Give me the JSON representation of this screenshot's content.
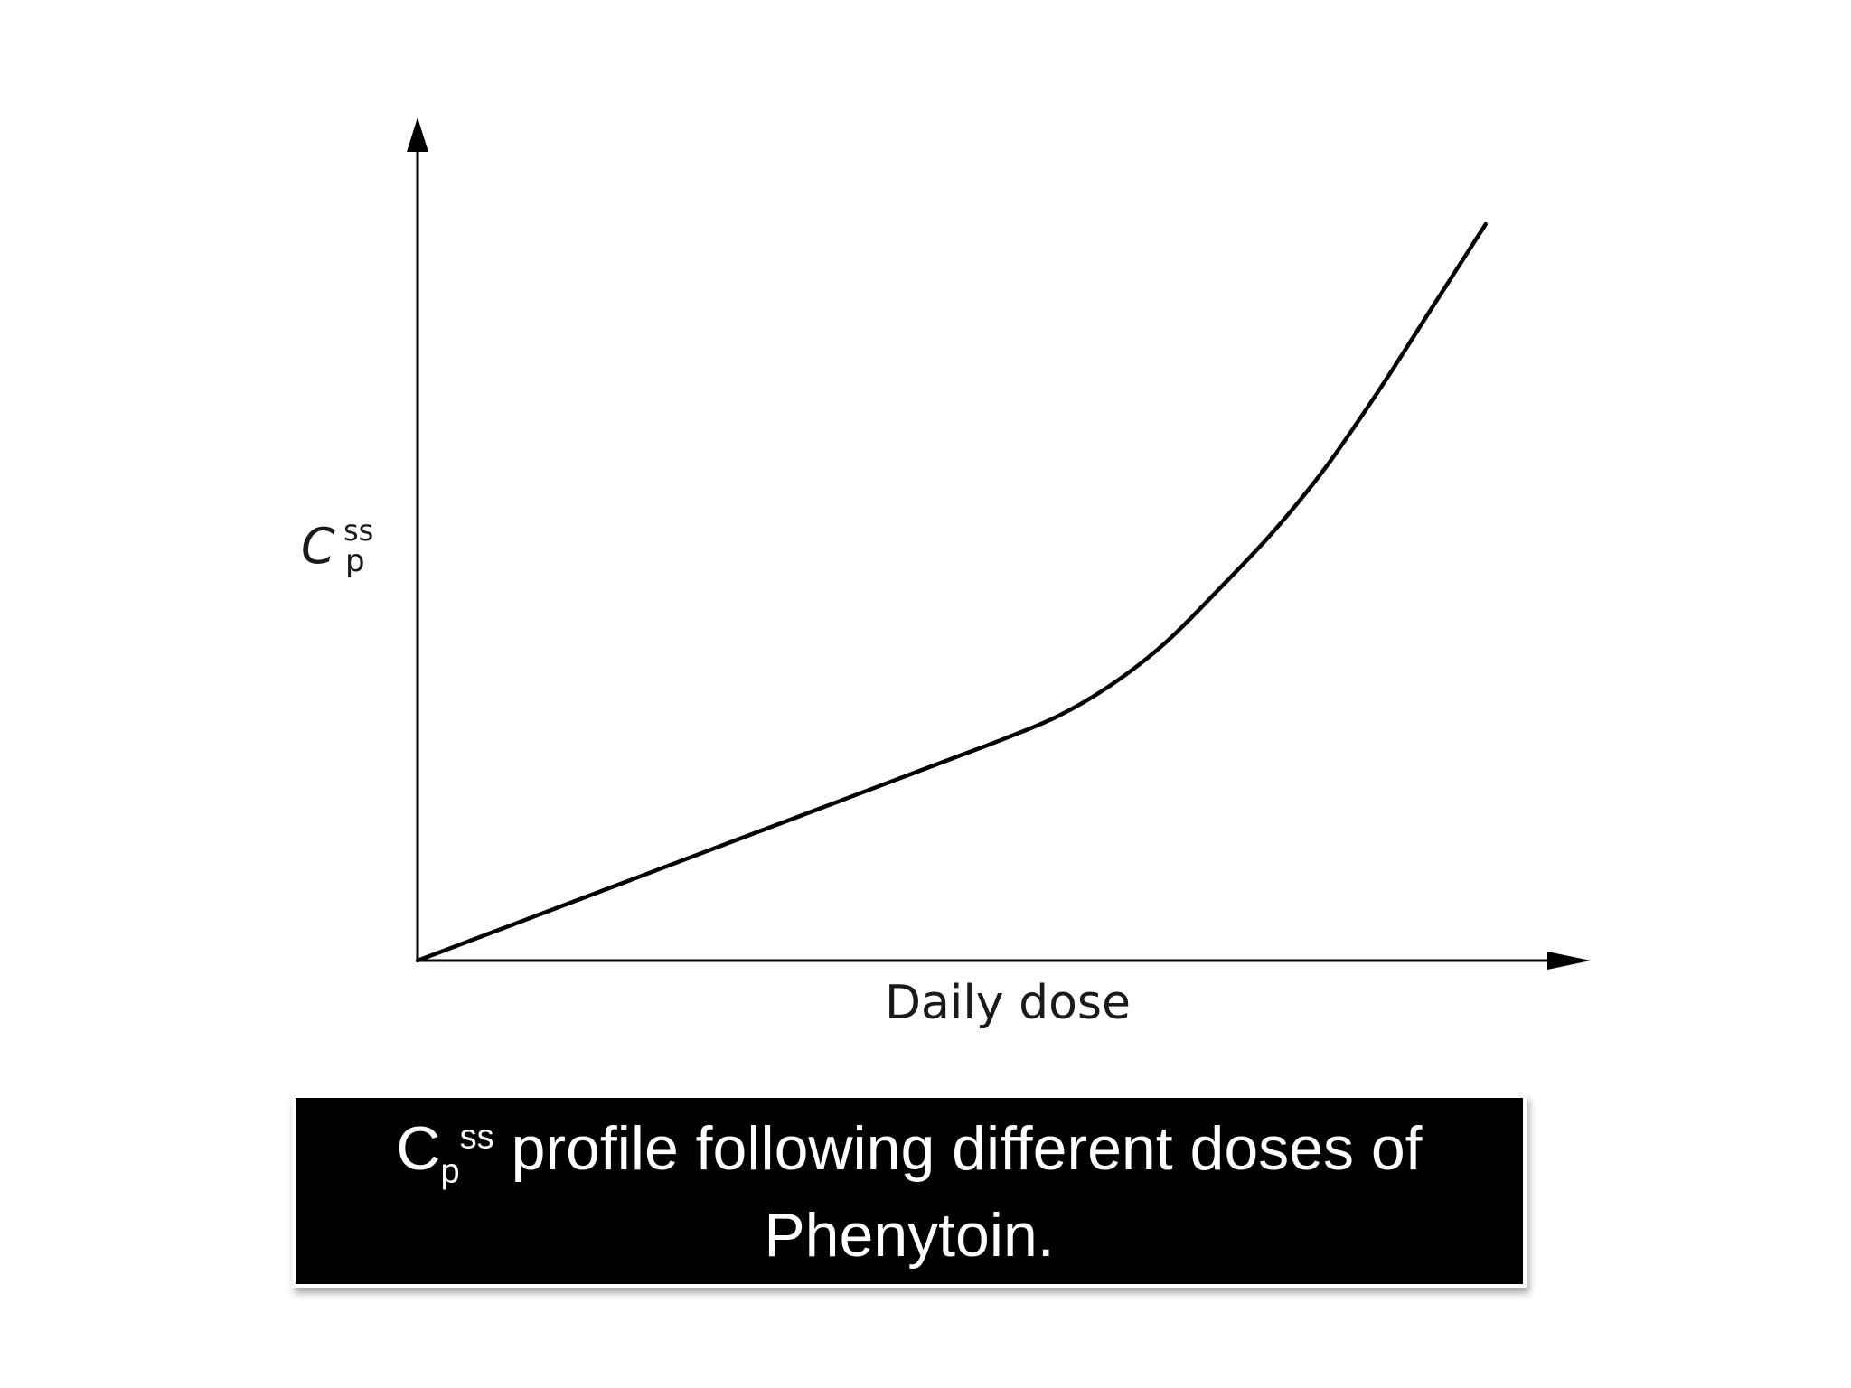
{
  "chart_data": {
    "type": "line",
    "xlabel": "Daily dose",
    "ylabel": {
      "base": "C",
      "sub": "p",
      "sup": "ss"
    },
    "x": [
      0,
      10,
      20,
      30,
      40,
      50,
      55,
      60,
      65,
      70,
      75,
      80,
      85,
      90,
      95,
      100
    ],
    "y": [
      0,
      6.8,
      13.6,
      20.4,
      27.2,
      34.0,
      37.4,
      41.2,
      46.5,
      53.5,
      62.5,
      72.0,
      83.0,
      96.0,
      110.0,
      124.0
    ],
    "xlim": [
      0,
      110
    ],
    "ylim": [
      0,
      140
    ],
    "grid": false,
    "ticks": false
  },
  "caption": {
    "base": "C",
    "sub": "p",
    "sup": "ss",
    "line1_rest": "profile following different doses of",
    "line2": "Phenytoin."
  },
  "colors": {
    "curve": "#000000",
    "axis": "#000000",
    "caption_bg": "#000000",
    "caption_text": "#ffffff"
  }
}
